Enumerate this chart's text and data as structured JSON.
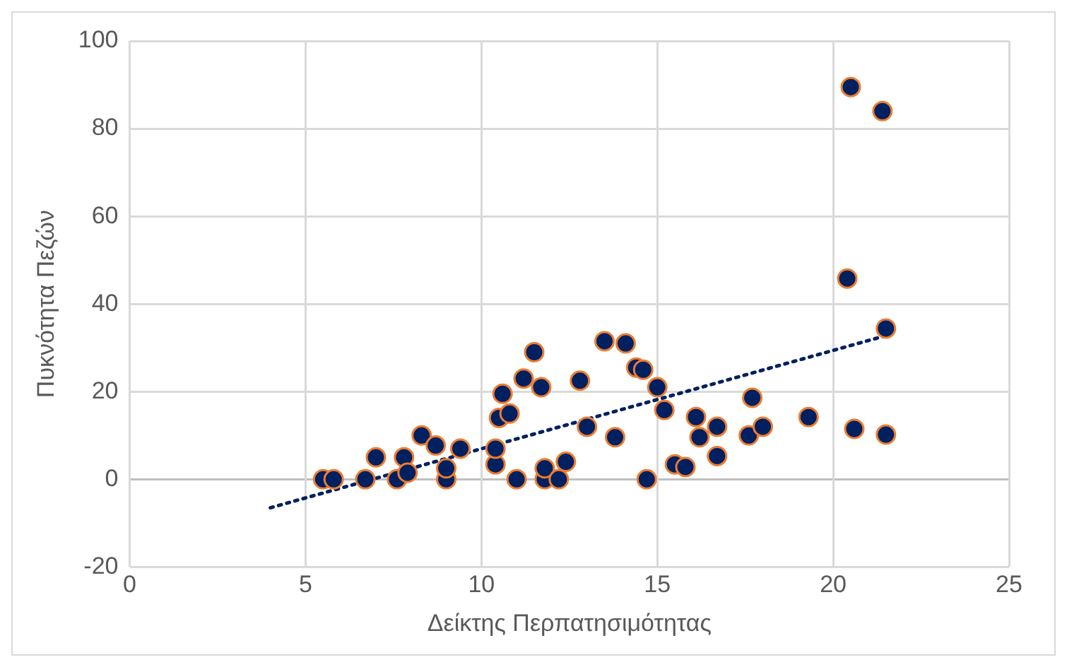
{
  "chart_data": {
    "type": "scatter",
    "xlabel": "Δείκτης Περπατησιμότητας",
    "ylabel": "Πυκνότητα Πεζών",
    "xlim": [
      0,
      25
    ],
    "xticks": [
      0,
      5,
      10,
      15,
      20,
      25
    ],
    "ylim": [
      -20,
      100
    ],
    "yticks": [
      -20,
      0,
      20,
      40,
      60,
      80,
      100
    ],
    "grid": true,
    "legend": false,
    "marker": "circle",
    "series": [
      {
        "type": "scatter",
        "color": "#002060",
        "x": [
          5.5,
          5.8,
          6.7,
          7.0,
          7.6,
          7.8,
          7.9,
          8.3,
          8.7,
          9.0,
          9.0,
          9.4,
          10.4,
          10.4,
          10.5,
          10.6,
          10.8,
          11.0,
          11.2,
          11.5,
          11.7,
          11.8,
          11.8,
          12.2,
          12.4,
          12.8,
          13.0,
          13.5,
          13.8,
          14.1,
          14.4,
          14.6,
          14.7,
          15.0,
          15.2,
          15.5,
          15.8,
          16.1,
          16.2,
          16.7,
          16.7,
          17.6,
          17.7,
          18.0,
          19.3,
          20.4,
          20.5,
          20.6,
          21.4,
          21.5,
          21.5
        ],
        "values": [
          0,
          0,
          0,
          5,
          0,
          5,
          1.5,
          10,
          7.7,
          0,
          2.5,
          7,
          3.4,
          7,
          14,
          19.5,
          15,
          0,
          23,
          29,
          21,
          0,
          2.5,
          0,
          4,
          22.5,
          12,
          31.5,
          9.6,
          31,
          25.5,
          25,
          0,
          21,
          15.8,
          3.4,
          2.8,
          14.2,
          9.6,
          12,
          5.3,
          10,
          18.6,
          12,
          14.2,
          45.8,
          89.5,
          11.5,
          84,
          34.4,
          10.2
        ]
      },
      {
        "type": "line",
        "color": "#002060",
        "line_style": "dotted",
        "marker": "none",
        "x": [
          4,
          21.6
        ],
        "values": [
          -6.5,
          33
        ]
      }
    ]
  }
}
